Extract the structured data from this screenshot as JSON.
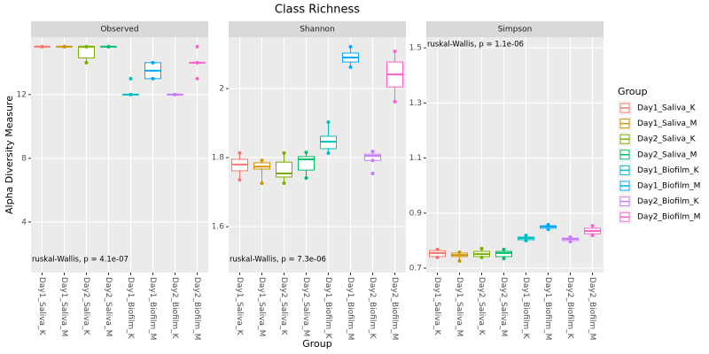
{
  "chart_data": {
    "type": "box",
    "title": "Class Richness",
    "xlabel": "Group",
    "ylabel": "Alpha Diversity Measure",
    "legend_title": "Group",
    "categories": [
      "Day1_Saliva_K",
      "Day1_Saliva_M",
      "Day2_Saliva_K",
      "Day2_Saliva_M",
      "Day1_Biofilm_K",
      "Day1_Biofilm_M",
      "Day2_Biofilm_K",
      "Day2_Biofilm_M"
    ],
    "colors": [
      "#F8766D",
      "#CD9600",
      "#7CAE00",
      "#00BE67",
      "#00BFC4",
      "#00A9FF",
      "#C77CFF",
      "#FF61CC"
    ],
    "grid": true,
    "panels": [
      {
        "title": "Observed",
        "ylim": [
          0.83,
          15.6
        ],
        "yticks": [
          4,
          8,
          12
        ],
        "annotation": "ruskal-Wallis, p = 4.1e-07",
        "annotation_position": "bottom",
        "boxes": [
          {
            "min": 15,
            "q1": 15,
            "median": 15,
            "q3": 15,
            "max": 15,
            "outliers": []
          },
          {
            "min": 15,
            "q1": 15,
            "median": 15,
            "q3": 15,
            "max": 15,
            "outliers": []
          },
          {
            "min": 14,
            "q1": 14.3,
            "median": 15,
            "q3": 15,
            "max": 15,
            "outliers": []
          },
          {
            "min": 15,
            "q1": 15,
            "median": 15,
            "q3": 15,
            "max": 15,
            "outliers": []
          },
          {
            "min": 12,
            "q1": 12,
            "median": 12,
            "q3": 12,
            "max": 12,
            "outliers": [
              13
            ]
          },
          {
            "min": 13,
            "q1": 13,
            "median": 13.5,
            "q3": 14,
            "max": 14,
            "outliers": []
          },
          {
            "min": 12,
            "q1": 12,
            "median": 12,
            "q3": 12,
            "max": 12,
            "outliers": []
          },
          {
            "min": 14,
            "q1": 14,
            "median": 14,
            "q3": 14,
            "max": 14,
            "outliers": [
              13,
              15
            ]
          }
        ]
      },
      {
        "title": "Shannon",
        "ylim": [
          1.467,
          2.149
        ],
        "yticks": [
          1.6,
          1.8,
          2.0
        ],
        "annotation": "ruskal-Wallis, p = 7.3e-06",
        "annotation_position": "bottom",
        "boxes": [
          {
            "min": 1.736,
            "q1": 1.762,
            "median": 1.78,
            "q3": 1.795,
            "max": 1.813,
            "outliers": []
          },
          {
            "min": 1.726,
            "q1": 1.767,
            "median": 1.774,
            "q3": 1.785,
            "max": 1.792,
            "outliers": []
          },
          {
            "min": 1.726,
            "q1": 1.744,
            "median": 1.754,
            "q3": 1.787,
            "max": 1.813,
            "outliers": []
          },
          {
            "min": 1.741,
            "q1": 1.764,
            "median": 1.795,
            "q3": 1.803,
            "max": 1.815,
            "outliers": []
          },
          {
            "min": 1.813,
            "q1": 1.826,
            "median": 1.846,
            "q3": 1.862,
            "max": 1.903,
            "outliers": []
          },
          {
            "min": 2.062,
            "q1": 2.077,
            "median": 2.09,
            "q3": 2.103,
            "max": 2.121,
            "outliers": []
          },
          {
            "min": 1.792,
            "q1": 1.792,
            "median": 1.805,
            "q3": 1.81,
            "max": 1.818,
            "outliers": [
              1.754
            ]
          },
          {
            "min": 1.962,
            "q1": 2.005,
            "median": 2.041,
            "q3": 2.077,
            "max": 2.108,
            "outliers": []
          }
        ]
      },
      {
        "title": "Simpson",
        "ylim": [
          0.684,
          1.539
        ],
        "yticks": [
          0.7,
          0.9,
          1.1,
          1.3,
          1.5
        ],
        "annotation": "ruskal-Wallis, p = 1.1e-06",
        "annotation_position": "top",
        "boxes": [
          {
            "min": 0.739,
            "q1": 0.742,
            "median": 0.755,
            "q3": 0.764,
            "max": 0.768,
            "outliers": []
          },
          {
            "min": 0.726,
            "q1": 0.742,
            "median": 0.748,
            "q3": 0.755,
            "max": 0.758,
            "outliers": []
          },
          {
            "min": 0.739,
            "q1": 0.742,
            "median": 0.751,
            "q3": 0.761,
            "max": 0.771,
            "outliers": []
          },
          {
            "min": 0.735,
            "q1": 0.742,
            "median": 0.755,
            "q3": 0.761,
            "max": 0.768,
            "outliers": []
          },
          {
            "min": 0.8,
            "q1": 0.803,
            "median": 0.809,
            "q3": 0.813,
            "max": 0.819,
            "outliers": []
          },
          {
            "min": 0.841,
            "q1": 0.845,
            "median": 0.851,
            "q3": 0.854,
            "max": 0.858,
            "outliers": []
          },
          {
            "min": 0.796,
            "q1": 0.8,
            "median": 0.806,
            "q3": 0.809,
            "max": 0.813,
            "outliers": []
          },
          {
            "min": 0.819,
            "q1": 0.825,
            "median": 0.835,
            "q3": 0.845,
            "max": 0.854,
            "outliers": []
          }
        ]
      }
    ]
  }
}
